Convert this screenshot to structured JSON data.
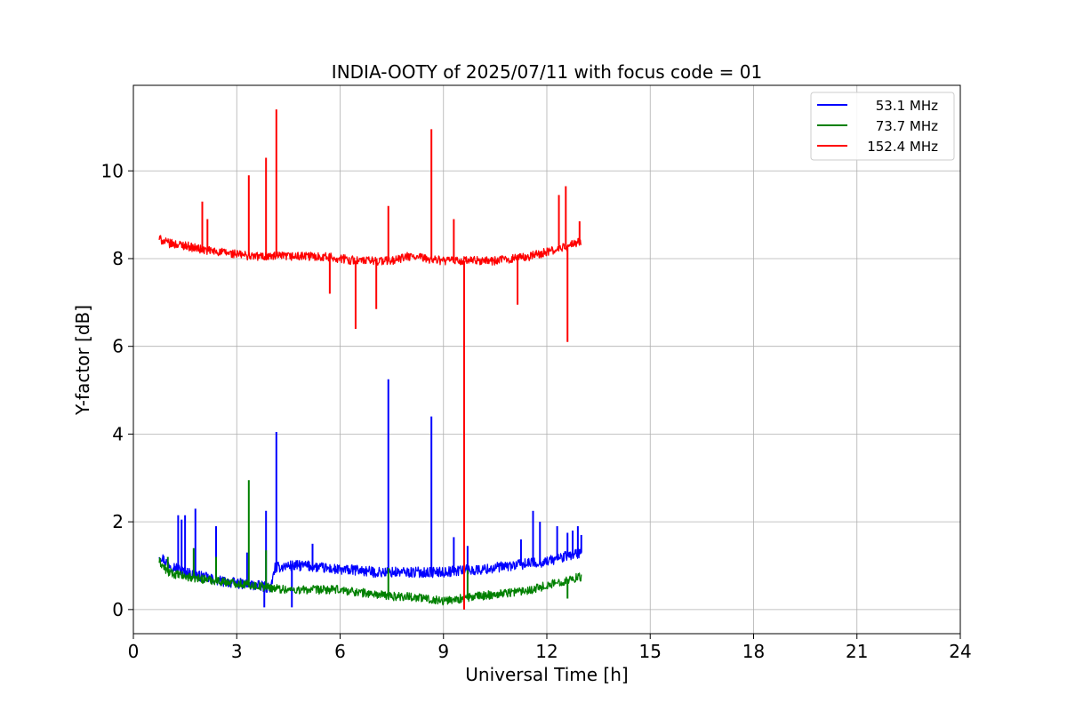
{
  "chart_data": {
    "type": "line",
    "title": "INDIA-OOTY of 2025/07/11 with focus code = 01",
    "xlabel": "Universal Time [h]",
    "ylabel": "Y-factor [dB]",
    "xlim": [
      0,
      24
    ],
    "ylim": [
      -0.55,
      11.95
    ],
    "xticks": [
      "0",
      "3",
      "6",
      "9",
      "12",
      "15",
      "18",
      "21",
      "24"
    ],
    "yticks": [
      "0",
      "2",
      "4",
      "6",
      "8",
      "10"
    ],
    "grid": true,
    "legend_position": "top-right",
    "series": [
      {
        "name": "53.1 MHz",
        "color": "#0000ff",
        "x": [
          0.75,
          1.0,
          1.5,
          2.0,
          2.5,
          3.0,
          3.5,
          4.0,
          4.1,
          4.5,
          5.0,
          5.5,
          6.0,
          6.5,
          7.0,
          7.5,
          8.0,
          8.5,
          9.0,
          9.5,
          10.0,
          10.5,
          11.0,
          11.5,
          12.0,
          12.5,
          13.0
        ],
        "y": [
          1.25,
          1.05,
          0.85,
          0.75,
          0.65,
          0.6,
          0.55,
          0.5,
          0.95,
          1.0,
          1.0,
          0.95,
          0.9,
          0.9,
          0.85,
          0.85,
          0.85,
          0.85,
          0.85,
          0.9,
          0.9,
          0.95,
          1.0,
          1.05,
          1.1,
          1.2,
          1.3
        ],
        "noise": 0.12,
        "spikes": [
          [
            1.3,
            2.15
          ],
          [
            1.4,
            2.05
          ],
          [
            1.5,
            2.15
          ],
          [
            1.8,
            2.3
          ],
          [
            2.4,
            1.9
          ],
          [
            3.3,
            1.3
          ],
          [
            3.85,
            2.25
          ],
          [
            4.15,
            4.05
          ],
          [
            5.2,
            1.5
          ],
          [
            7.4,
            5.25
          ],
          [
            8.65,
            4.4
          ],
          [
            9.3,
            1.65
          ],
          [
            11.25,
            1.6
          ],
          [
            11.6,
            2.25
          ],
          [
            11.8,
            2.0
          ],
          [
            12.3,
            1.9
          ],
          [
            12.6,
            1.75
          ],
          [
            12.75,
            1.8
          ],
          [
            12.9,
            1.9
          ],
          [
            13.0,
            1.7
          ],
          [
            3.8,
            0.05
          ],
          [
            4.6,
            0.05
          ],
          [
            9.6,
            0.3
          ],
          [
            9.7,
            1.45
          ]
        ]
      },
      {
        "name": "73.7 MHz",
        "color": "#008000",
        "x": [
          0.75,
          1.0,
          1.5,
          2.0,
          2.5,
          3.0,
          3.5,
          4.0,
          4.5,
          5.0,
          5.5,
          6.0,
          6.5,
          7.0,
          7.5,
          8.0,
          8.5,
          9.0,
          9.5,
          10.0,
          10.5,
          11.0,
          11.5,
          12.0,
          12.5,
          13.0
        ],
        "y": [
          1.1,
          0.85,
          0.75,
          0.7,
          0.65,
          0.6,
          0.55,
          0.5,
          0.45,
          0.45,
          0.45,
          0.45,
          0.4,
          0.35,
          0.3,
          0.3,
          0.25,
          0.2,
          0.25,
          0.3,
          0.35,
          0.4,
          0.45,
          0.55,
          0.65,
          0.75
        ],
        "noise": 0.1,
        "spikes": [
          [
            1.0,
            1.2
          ],
          [
            1.75,
            1.4
          ],
          [
            2.4,
            1.2
          ],
          [
            3.35,
            2.95
          ],
          [
            3.85,
            1.35
          ],
          [
            7.4,
            0.95
          ],
          [
            9.7,
            0.9
          ],
          [
            12.6,
            0.25
          ]
        ]
      },
      {
        "name": "152.4 MHz",
        "color": "#ff0000",
        "x": [
          0.75,
          1.0,
          1.5,
          2.0,
          2.5,
          3.0,
          3.5,
          4.0,
          4.5,
          5.0,
          5.5,
          6.0,
          6.5,
          7.0,
          7.5,
          8.0,
          8.5,
          9.0,
          9.5,
          10.0,
          10.5,
          11.0,
          11.5,
          12.0,
          12.5,
          13.0
        ],
        "y": [
          8.45,
          8.35,
          8.3,
          8.2,
          8.15,
          8.1,
          8.05,
          8.05,
          8.05,
          8.05,
          8.05,
          8.0,
          7.95,
          7.95,
          7.95,
          8.05,
          8.0,
          7.95,
          7.95,
          7.95,
          7.95,
          8.0,
          8.05,
          8.15,
          8.25,
          8.4
        ],
        "noise": 0.1,
        "spikes": [
          [
            2.0,
            9.3
          ],
          [
            2.15,
            8.9
          ],
          [
            3.35,
            9.9
          ],
          [
            3.85,
            10.3
          ],
          [
            4.15,
            11.4
          ],
          [
            7.4,
            9.2
          ],
          [
            8.65,
            10.95
          ],
          [
            9.3,
            8.9
          ],
          [
            12.35,
            9.45
          ],
          [
            12.55,
            9.65
          ],
          [
            12.95,
            8.85
          ],
          [
            5.7,
            7.2
          ],
          [
            6.45,
            6.4
          ],
          [
            7.05,
            6.85
          ],
          [
            9.6,
            0.0
          ],
          [
            11.15,
            6.95
          ],
          [
            12.6,
            6.1
          ]
        ]
      }
    ]
  }
}
